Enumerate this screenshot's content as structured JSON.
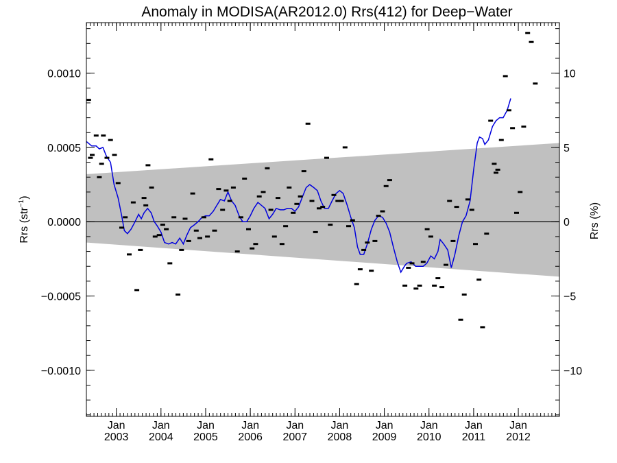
{
  "chart_data": {
    "type": "scatter",
    "title": "Anomaly in MODISA(AR2012.0) Rrs(412) for Deep−Water",
    "ylabel_left": "Rrs (str",
    "ylabel_left_sup": "−1",
    "ylabel_left_close": ")",
    "ylabel_right": "Rrs (%)",
    "xlim": [
      2002.33,
      2012.92
    ],
    "ylim": [
      -0.00131,
      0.00134
    ],
    "y2lim": [
      -13.1,
      13.4
    ],
    "x_tick_month": "Jan",
    "x_ticks": [
      {
        "x": 2003,
        "label": "2003"
      },
      {
        "x": 2004,
        "label": "2004"
      },
      {
        "x": 2005,
        "label": "2005"
      },
      {
        "x": 2006,
        "label": "2006"
      },
      {
        "x": 2007,
        "label": "2007"
      },
      {
        "x": 2008,
        "label": "2008"
      },
      {
        "x": 2009,
        "label": "2009"
      },
      {
        "x": 2010,
        "label": "2010"
      },
      {
        "x": 2011,
        "label": "2011"
      },
      {
        "x": 2012,
        "label": "2012"
      }
    ],
    "y_ticks_left": [
      {
        "y": 0.001,
        "label": "0.0010"
      },
      {
        "y": 0.0005,
        "label": "0.0005"
      },
      {
        "y": 0.0,
        "label": "0.0000"
      },
      {
        "y": -0.0005,
        "label": "−0.0005"
      },
      {
        "y": -0.001,
        "label": "−0.0010"
      }
    ],
    "y_ticks_right": [
      {
        "y": 10,
        "label": "10"
      },
      {
        "y": 5,
        "label": "5"
      },
      {
        "y": 0,
        "label": "0"
      },
      {
        "y": -5,
        "label": "−5"
      },
      {
        "y": -10,
        "label": "−10"
      }
    ],
    "band": {
      "x0": 2002.33,
      "x1": 2012.92,
      "upper": [
        0.00032,
        0.00053
      ],
      "lower": [
        -0.00014,
        -0.00037
      ],
      "color": "#c0c0c0"
    },
    "zero_line": 0.0,
    "line_color": "#0000dd",
    "marker_color": "#000000",
    "monthly_points": [
      [
        2002.38,
        0.00082
      ],
      [
        2002.42,
        0.00043
      ],
      [
        2002.46,
        0.00045
      ],
      [
        2002.55,
        0.00058
      ],
      [
        2002.62,
        0.0003
      ],
      [
        2002.67,
        0.00039
      ],
      [
        2002.71,
        0.00058
      ],
      [
        2002.79,
        0.00043
      ],
      [
        2002.87,
        0.00055
      ],
      [
        2002.96,
        0.00045
      ],
      [
        2003.04,
        0.00026
      ],
      [
        2003.12,
        -4e-05
      ],
      [
        2003.2,
        3e-05
      ],
      [
        2003.29,
        -0.00022
      ],
      [
        2003.38,
        0.00013
      ],
      [
        2003.46,
        -0.00046
      ],
      [
        2003.54,
        -0.00019
      ],
      [
        2003.62,
        0.00016
      ],
      [
        2003.66,
        0.00011
      ],
      [
        2003.71,
        0.00038
      ],
      [
        2003.79,
        0.00023
      ],
      [
        2003.87,
        -0.0001
      ],
      [
        2003.96,
        -9e-05
      ],
      [
        2004.04,
        -2e-05
      ],
      [
        2004.12,
        -5e-05
      ],
      [
        2004.2,
        -0.00028
      ],
      [
        2004.29,
        3e-05
      ],
      [
        2004.38,
        -0.00049
      ],
      [
        2004.46,
        -0.00019
      ],
      [
        2004.54,
        2e-05
      ],
      [
        2004.62,
        -0.00013
      ],
      [
        2004.71,
        0.00019
      ],
      [
        2004.79,
        -6e-05
      ],
      [
        2004.87,
        -0.00011
      ],
      [
        2004.96,
        3e-05
      ],
      [
        2005.04,
        -0.0001
      ],
      [
        2005.12,
        0.00042
      ],
      [
        2005.2,
        -6e-05
      ],
      [
        2005.29,
        0.00022
      ],
      [
        2005.38,
        8e-05
      ],
      [
        2005.46,
        0.00021
      ],
      [
        2005.54,
        0.00014
      ],
      [
        2005.62,
        0.00023
      ],
      [
        2005.71,
        -0.0002
      ],
      [
        2005.79,
        3e-05
      ],
      [
        2005.87,
        0.00029
      ],
      [
        2005.96,
        -5e-05
      ],
      [
        2006.04,
        -0.00018
      ],
      [
        2006.12,
        -0.00015
      ],
      [
        2006.2,
        0.00017
      ],
      [
        2006.29,
        0.0002
      ],
      [
        2006.38,
        0.00036
      ],
      [
        2006.46,
        8e-05
      ],
      [
        2006.54,
        -0.0001
      ],
      [
        2006.62,
        0.00016
      ],
      [
        2006.71,
        -0.00015
      ],
      [
        2006.79,
        -3e-05
      ],
      [
        2006.87,
        0.00023
      ],
      [
        2006.96,
        6e-05
      ],
      [
        2007.04,
        0.00012
      ],
      [
        2007.12,
        0.00017
      ],
      [
        2007.2,
        0.00034
      ],
      [
        2007.29,
        0.00066
      ],
      [
        2007.38,
        0.00014
      ],
      [
        2007.46,
        -7e-05
      ],
      [
        2007.54,
        9e-05
      ],
      [
        2007.62,
        0.0001
      ],
      [
        2007.71,
        0.00043
      ],
      [
        2007.79,
        -2e-05
      ],
      [
        2007.87,
        0.00018
      ],
      [
        2007.96,
        0.00014
      ],
      [
        2008.04,
        0.00014
      ],
      [
        2008.12,
        0.0005
      ],
      [
        2008.2,
        -3e-05
      ],
      [
        2008.29,
        1e-05
      ],
      [
        2008.38,
        -0.00042
      ],
      [
        2008.46,
        -0.00032
      ],
      [
        2008.54,
        -0.00019
      ],
      [
        2008.62,
        -0.00014
      ],
      [
        2008.71,
        -0.00033
      ],
      [
        2008.79,
        -0.00013
      ],
      [
        2008.87,
        4e-05
      ],
      [
        2008.96,
        7e-05
      ],
      [
        2009.04,
        0.00024
      ],
      [
        2009.12,
        0.00028
      ],
      [
        2009.46,
        -0.00043
      ],
      [
        2009.54,
        -0.00031
      ],
      [
        2009.62,
        -0.00028
      ],
      [
        2009.71,
        -0.00045
      ],
      [
        2009.79,
        -0.00043
      ],
      [
        2009.87,
        -0.00027
      ],
      [
        2009.96,
        -5e-05
      ],
      [
        2010.04,
        -0.0001
      ],
      [
        2010.12,
        -0.00043
      ],
      [
        2010.2,
        -0.00038
      ],
      [
        2010.29,
        -0.00044
      ],
      [
        2010.38,
        -0.00029
      ],
      [
        2010.46,
        0.00014
      ],
      [
        2010.54,
        -0.00013
      ],
      [
        2010.62,
        0.0001
      ],
      [
        2010.71,
        -0.00066
      ],
      [
        2010.79,
        -0.00049
      ],
      [
        2010.87,
        0.00015
      ],
      [
        2010.96,
        8e-05
      ],
      [
        2011.04,
        -0.00015
      ],
      [
        2011.12,
        -0.00039
      ],
      [
        2011.2,
        -0.00071
      ],
      [
        2011.29,
        -8e-05
      ],
      [
        2011.38,
        0.00068
      ],
      [
        2011.46,
        0.00039
      ],
      [
        2011.5,
        0.00033
      ],
      [
        2011.54,
        0.00035
      ],
      [
        2011.62,
        0.00055
      ],
      [
        2011.71,
        0.00098
      ],
      [
        2011.79,
        0.00075
      ],
      [
        2011.87,
        0.00063
      ],
      [
        2011.96,
        6e-05
      ],
      [
        2012.04,
        0.0002
      ],
      [
        2012.12,
        0.00064
      ],
      [
        2012.21,
        0.00127
      ],
      [
        2012.29,
        0.00121
      ],
      [
        2012.38,
        0.00093
      ]
    ],
    "running_mean": [
      [
        2002.33,
        0.00054
      ],
      [
        2002.45,
        0.00051
      ],
      [
        2002.55,
        0.00051
      ],
      [
        2002.62,
        0.00049
      ],
      [
        2002.7,
        0.0005
      ],
      [
        2002.78,
        0.00044
      ],
      [
        2002.87,
        0.0004
      ],
      [
        2002.95,
        0.00025
      ],
      [
        2003.04,
        0.00016
      ],
      [
        2003.12,
        4e-05
      ],
      [
        2003.18,
        -6e-05
      ],
      [
        2003.25,
        -8e-05
      ],
      [
        2003.33,
        -5e-05
      ],
      [
        2003.42,
        0.0
      ],
      [
        2003.5,
        5e-05
      ],
      [
        2003.56,
        2e-05
      ],
      [
        2003.62,
        6e-05
      ],
      [
        2003.7,
        9e-05
      ],
      [
        2003.78,
        6e-05
      ],
      [
        2003.85,
        0.0
      ],
      [
        2003.92,
        -3e-05
      ],
      [
        2004.0,
        -7e-05
      ],
      [
        2004.08,
        -0.00014
      ],
      [
        2004.17,
        -0.00015
      ],
      [
        2004.25,
        -0.00014
      ],
      [
        2004.33,
        -0.00015
      ],
      [
        2004.42,
        -0.00011
      ],
      [
        2004.5,
        -0.00015
      ],
      [
        2004.58,
        -9e-05
      ],
      [
        2004.66,
        -4e-05
      ],
      [
        2004.75,
        -2e-05
      ],
      [
        2004.83,
        0.0
      ],
      [
        2004.92,
        3e-05
      ],
      [
        2005.0,
        4e-05
      ],
      [
        2005.08,
        4e-05
      ],
      [
        2005.17,
        7e-05
      ],
      [
        2005.25,
        0.00011
      ],
      [
        2005.33,
        0.00015
      ],
      [
        2005.42,
        0.00014
      ],
      [
        2005.5,
        0.0002
      ],
      [
        2005.58,
        0.00014
      ],
      [
        2005.66,
        0.00011
      ],
      [
        2005.75,
        4e-05
      ],
      [
        2005.83,
        0.0
      ],
      [
        2005.92,
        0.0
      ],
      [
        2006.0,
        4e-05
      ],
      [
        2006.08,
        9e-05
      ],
      [
        2006.17,
        0.00013
      ],
      [
        2006.25,
        0.00011
      ],
      [
        2006.33,
        9e-05
      ],
      [
        2006.42,
        2e-05
      ],
      [
        2006.5,
        5e-05
      ],
      [
        2006.58,
        9e-05
      ],
      [
        2006.67,
        8e-05
      ],
      [
        2006.75,
        8e-05
      ],
      [
        2006.83,
        9e-05
      ],
      [
        2006.92,
        9e-05
      ],
      [
        2007.0,
        7e-05
      ],
      [
        2007.08,
        0.0001
      ],
      [
        2007.17,
        0.00017
      ],
      [
        2007.25,
        0.00023
      ],
      [
        2007.33,
        0.00025
      ],
      [
        2007.42,
        0.00023
      ],
      [
        2007.5,
        0.00021
      ],
      [
        2007.58,
        0.00014
      ],
      [
        2007.66,
        9e-05
      ],
      [
        2007.75,
        9e-05
      ],
      [
        2007.83,
        0.00014
      ],
      [
        2007.92,
        0.00019
      ],
      [
        2008.0,
        0.00021
      ],
      [
        2008.08,
        0.00019
      ],
      [
        2008.17,
        0.00011
      ],
      [
        2008.25,
        3e-05
      ],
      [
        2008.33,
        -4e-05
      ],
      [
        2008.4,
        -0.00017
      ],
      [
        2008.46,
        -0.00022
      ],
      [
        2008.54,
        -0.00022
      ],
      [
        2008.62,
        -0.00015
      ],
      [
        2008.71,
        -5e-05
      ],
      [
        2008.79,
        1e-05
      ],
      [
        2008.87,
        4e-05
      ],
      [
        2008.96,
        3e-05
      ],
      [
        2009.04,
        -1e-05
      ],
      [
        2009.12,
        -7e-05
      ],
      [
        2009.21,
        -0.00018
      ],
      [
        2009.29,
        -0.00027
      ],
      [
        2009.37,
        -0.00034
      ],
      [
        2009.45,
        -0.0003
      ],
      [
        2009.5,
        -0.00028
      ],
      [
        2009.6,
        -0.00027
      ],
      [
        2009.7,
        -0.0003
      ],
      [
        2009.8,
        -0.0003
      ],
      [
        2009.87,
        -0.0003
      ],
      [
        2009.95,
        -0.00028
      ],
      [
        2010.04,
        -0.00023
      ],
      [
        2010.12,
        -0.00025
      ],
      [
        2010.2,
        -0.0002
      ],
      [
        2010.25,
        -0.00012
      ],
      [
        2010.33,
        -0.00015
      ],
      [
        2010.42,
        -0.00019
      ],
      [
        2010.46,
        -0.00025
      ],
      [
        2010.5,
        -0.00031
      ],
      [
        2010.58,
        -0.00022
      ],
      [
        2010.67,
        -9e-05
      ],
      [
        2010.75,
        0.0
      ],
      [
        2010.83,
        4e-05
      ],
      [
        2010.92,
        0.00014
      ],
      [
        2011.0,
        0.00035
      ],
      [
        2011.08,
        0.00053
      ],
      [
        2011.13,
        0.00057
      ],
      [
        2011.2,
        0.00056
      ],
      [
        2011.25,
        0.00052
      ],
      [
        2011.33,
        0.00055
      ],
      [
        2011.42,
        0.00064
      ],
      [
        2011.5,
        0.00068
      ],
      [
        2011.58,
        0.0007
      ],
      [
        2011.66,
        0.0007
      ],
      [
        2011.75,
        0.00075
      ],
      [
        2011.83,
        0.00083
      ]
    ]
  }
}
